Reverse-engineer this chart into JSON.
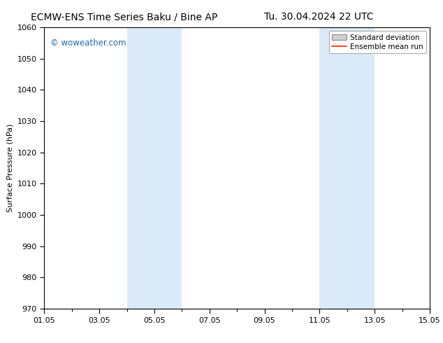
{
  "title_left": "ECMW-ENS Time Series Baku / Bine AP",
  "title_right": "Tu. 30.04.2024 22 UTC",
  "ylabel": "Surface Pressure (hPa)",
  "ylim": [
    970,
    1060
  ],
  "yticks": [
    970,
    980,
    990,
    1000,
    1010,
    1020,
    1030,
    1040,
    1050,
    1060
  ],
  "xlim_start": 0,
  "xlim_end": 14,
  "xtick_positions": [
    0,
    2,
    4,
    6,
    8,
    10,
    12,
    14
  ],
  "xtick_labels": [
    "01.05",
    "03.05",
    "05.05",
    "07.05",
    "09.05",
    "11.05",
    "13.05",
    "15.05"
  ],
  "shaded_bands": [
    {
      "xstart": 3.0,
      "xend": 5.0
    },
    {
      "xstart": 10.0,
      "xend": 12.0
    }
  ],
  "shade_color": "#daeaf8",
  "watermark_text": "© woweather.com",
  "watermark_color": "#1a6ab5",
  "legend_std_dev_label": "Standard deviation",
  "legend_mean_label": "Ensemble mean run",
  "legend_std_color": "#d0d0d0",
  "legend_mean_color": "#ff2200",
  "bg_color": "#ffffff",
  "title_fontsize": 10,
  "axis_label_fontsize": 8,
  "tick_fontsize": 8,
  "watermark_fontsize": 8.5
}
